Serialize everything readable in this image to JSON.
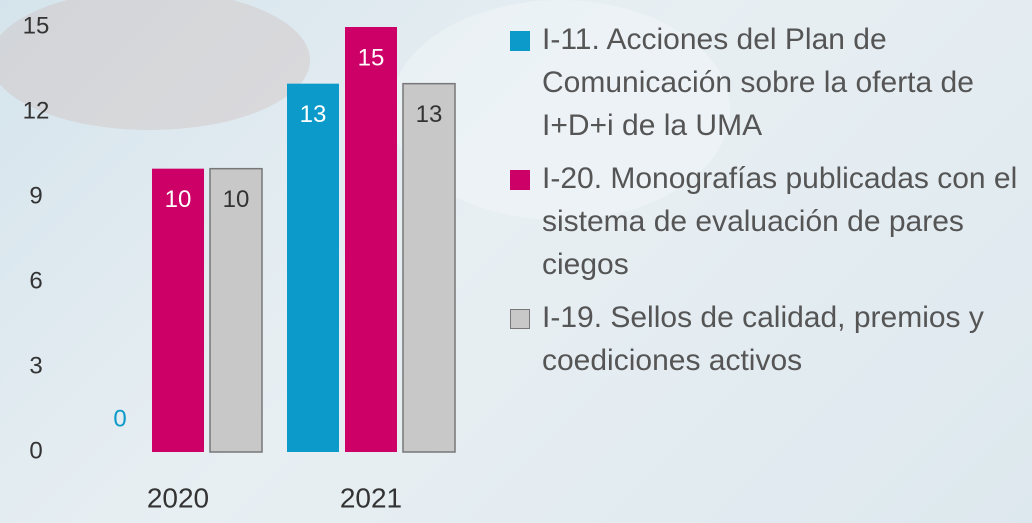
{
  "chart_data": {
    "type": "bar",
    "categories": [
      "2020",
      "2021"
    ],
    "series": [
      {
        "name": "I-11. Acciones del Plan de Comunicación sobre la oferta de I+D+i de la UMA",
        "color": "#0b9ac9",
        "values": [
          0,
          13
        ]
      },
      {
        "name": "I-20. Monografías publicadas con el sistema de evaluación de pares ciegos",
        "color": "#cc0066",
        "values": [
          10,
          15
        ]
      },
      {
        "name": "I-19. Sellos de calidad, premios y coediciones activos",
        "color": "#c8c8c8",
        "values": [
          10,
          13
        ]
      }
    ],
    "ylim": [
      0,
      15
    ],
    "yticks": [
      0,
      3,
      6,
      9,
      12,
      15
    ],
    "grid": false,
    "legend": "right"
  }
}
